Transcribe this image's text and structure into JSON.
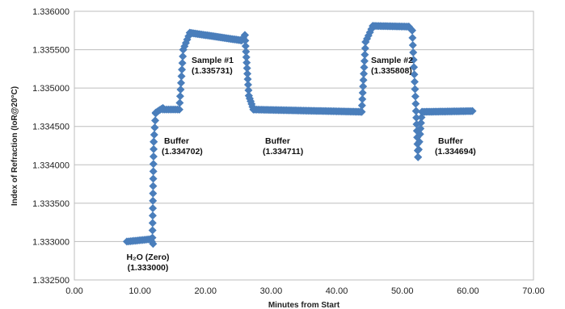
{
  "chart_data": {
    "type": "scatter",
    "xlabel": "Minutes from Start",
    "ylabel": "Index of Refraction (IoR@20°C)",
    "xlim": [
      0,
      70
    ],
    "ylim": [
      1.3325,
      1.336
    ],
    "x_ticks": [
      "0.00",
      "10.00",
      "20.00",
      "30.00",
      "40.00",
      "50.00",
      "60.00",
      "70.00"
    ],
    "y_ticks": [
      "1.332500",
      "1.333000",
      "1.333500",
      "1.334000",
      "1.334500",
      "1.335000",
      "1.335500",
      "1.336000"
    ],
    "grid": "horizontal",
    "legend": "none",
    "marker_color": "#4a7ebb",
    "annotations": [
      {
        "label": "H₂O (Zero)",
        "value": "(1.333000)"
      },
      {
        "label": "Buffer",
        "value": "(1.334702)"
      },
      {
        "label": "Sample #1",
        "value": "(1.335731)"
      },
      {
        "label": "Buffer",
        "value": "(1.334711)"
      },
      {
        "label": "Sample #2",
        "value": "(1.335808)"
      },
      {
        "label": "Buffer",
        "value": "(1.334694)"
      }
    ],
    "segments": [
      {
        "x0": 8.0,
        "x1": 11.5,
        "y0": 1.333,
        "y1": 1.33303,
        "n": 14
      },
      {
        "x0": 11.6,
        "x1": 12.0,
        "y0": 1.33303,
        "y1": 1.33297,
        "n": 3
      },
      {
        "x0": 11.9,
        "x1": 12.1,
        "y0": 1.33305,
        "y1": 1.3343,
        "n": 14
      },
      {
        "x0": 12.1,
        "x1": 12.4,
        "y0": 1.3343,
        "y1": 1.33467,
        "n": 5
      },
      {
        "x0": 12.4,
        "x1": 13.5,
        "y0": 1.33468,
        "y1": 1.33474,
        "n": 6
      },
      {
        "x0": 13.5,
        "x1": 16.0,
        "y0": 1.33472,
        "y1": 1.33472,
        "n": 10
      },
      {
        "x0": 16.0,
        "x1": 16.6,
        "y0": 1.33472,
        "y1": 1.3355,
        "n": 10
      },
      {
        "x0": 16.6,
        "x1": 17.6,
        "y0": 1.3355,
        "y1": 1.33572,
        "n": 6
      },
      {
        "x0": 17.6,
        "x1": 25.5,
        "y0": 1.33572,
        "y1": 1.33562,
        "n": 40
      },
      {
        "x0": 25.5,
        "x1": 26.0,
        "y0": 1.33562,
        "y1": 1.33569,
        "n": 3
      },
      {
        "x0": 26.0,
        "x1": 26.6,
        "y0": 1.33569,
        "y1": 1.3349,
        "n": 12
      },
      {
        "x0": 26.6,
        "x1": 27.3,
        "y0": 1.3349,
        "y1": 1.33472,
        "n": 6
      },
      {
        "x0": 27.3,
        "x1": 43.8,
        "y0": 1.33472,
        "y1": 1.33469,
        "n": 70
      },
      {
        "x0": 43.8,
        "x1": 44.4,
        "y0": 1.33469,
        "y1": 1.3356,
        "n": 12
      },
      {
        "x0": 44.4,
        "x1": 45.5,
        "y0": 1.3356,
        "y1": 1.33581,
        "n": 6
      },
      {
        "x0": 45.5,
        "x1": 51.0,
        "y0": 1.33581,
        "y1": 1.3358,
        "n": 25
      },
      {
        "x0": 51.0,
        "x1": 51.5,
        "y0": 1.3358,
        "y1": 1.33575,
        "n": 3
      },
      {
        "x0": 51.5,
        "x1": 52.1,
        "y0": 1.33575,
        "y1": 1.3347,
        "n": 12
      },
      {
        "x0": 52.1,
        "x1": 52.4,
        "y0": 1.3347,
        "y1": 1.3341,
        "n": 8
      },
      {
        "x0": 52.4,
        "x1": 52.7,
        "y0": 1.3341,
        "y1": 1.3344,
        "n": 4
      },
      {
        "x0": 52.7,
        "x1": 53.0,
        "y0": 1.3344,
        "y1": 1.33469,
        "n": 5
      },
      {
        "x0": 53.0,
        "x1": 60.7,
        "y0": 1.33469,
        "y1": 1.3347,
        "n": 35
      }
    ]
  }
}
